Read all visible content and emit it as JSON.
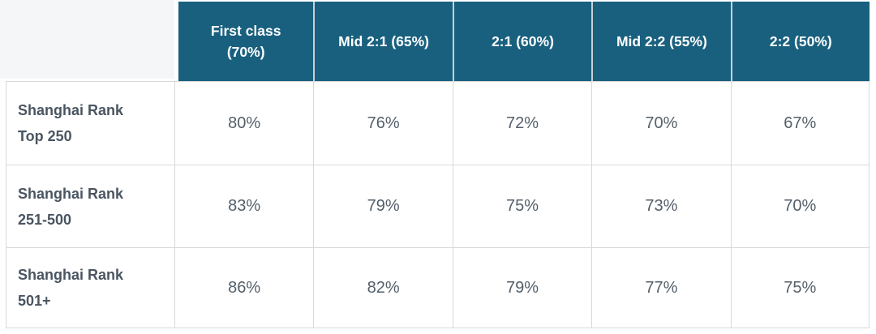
{
  "chart_data": {
    "type": "table",
    "columns": [
      "First class\n(70%)",
      "Mid 2:1 (65%)",
      "2:1 (60%)",
      "Mid 2:2 (55%)",
      "2:2 (50%)"
    ],
    "rows": [
      {
        "label": "Shanghai Rank\nTop 250",
        "values": [
          "80%",
          "76%",
          "72%",
          "70%",
          "67%"
        ]
      },
      {
        "label": "Shanghai Rank\n251-500",
        "values": [
          "83%",
          "79%",
          "75%",
          "73%",
          "70%"
        ]
      },
      {
        "label": "Shanghai Rank\n501+",
        "values": [
          "86%",
          "82%",
          "79%",
          "77%",
          "75%"
        ]
      }
    ]
  },
  "colors": {
    "header_background": "#19607f",
    "header_text": "#ffffff",
    "header_divider": "#c6d1d7",
    "corner_background": "#f5f6f7",
    "row_label_text": "#4a5561",
    "value_text": "#545f6a",
    "grid_border": "#d9d9d9"
  }
}
